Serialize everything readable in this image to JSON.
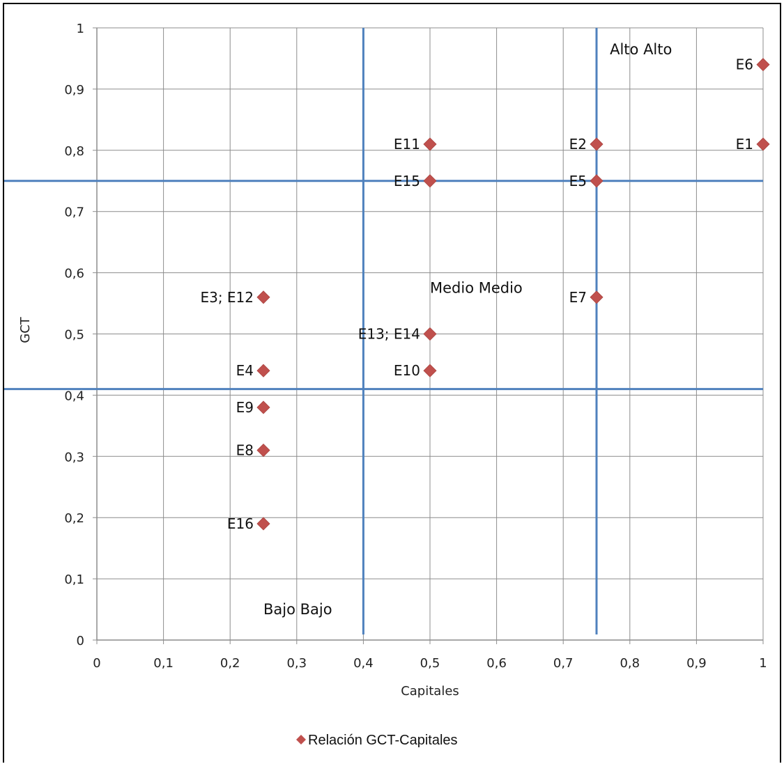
{
  "chart_data": {
    "type": "scatter",
    "title": "",
    "xlabel": "Capitales",
    "ylabel": "GCT",
    "xlim": [
      0,
      1
    ],
    "ylim": [
      0,
      1
    ],
    "x_tick_labels": [
      "0",
      "0,1",
      "0,2",
      "0,3",
      "0,4",
      "0,5",
      "0,6",
      "0,7",
      "0,8",
      "0,9",
      "1"
    ],
    "y_tick_labels": [
      "0",
      "0,1",
      "0,2",
      "0,3",
      "0,4",
      "0,5",
      "0,6",
      "0,7",
      "0,8",
      "0,9",
      "1"
    ],
    "grid": true,
    "legend_position": "bottom",
    "series": [
      {
        "name": "Relación  GCT-Capitales",
        "color": "#c0504d",
        "marker": "diamond",
        "points": [
          {
            "label": "E1",
            "x": 1.0,
            "y": 0.81
          },
          {
            "label": "E2",
            "x": 0.75,
            "y": 0.81
          },
          {
            "label": "E3; E12",
            "x": 0.25,
            "y": 0.56
          },
          {
            "label": "E4",
            "x": 0.25,
            "y": 0.44
          },
          {
            "label": "E5",
            "x": 0.75,
            "y": 0.75
          },
          {
            "label": "E6",
            "x": 1.0,
            "y": 0.94
          },
          {
            "label": "E7",
            "x": 0.75,
            "y": 0.56
          },
          {
            "label": "E8",
            "x": 0.25,
            "y": 0.31
          },
          {
            "label": "E9",
            "x": 0.25,
            "y": 0.38
          },
          {
            "label": "E10",
            "x": 0.5,
            "y": 0.44
          },
          {
            "label": "E11",
            "x": 0.5,
            "y": 0.81
          },
          {
            "label": "E13; E14",
            "x": 0.5,
            "y": 0.5
          },
          {
            "label": "E15",
            "x": 0.5,
            "y": 0.75
          },
          {
            "label": "E16",
            "x": 0.25,
            "y": 0.19
          }
        ]
      }
    ],
    "reference_lines": {
      "color": "#4f81bd",
      "vertical_x": [
        0.4,
        0.75
      ],
      "horizontal_y": [
        0.41,
        0.75
      ]
    },
    "annotations": [
      {
        "text": "Alto Alto",
        "x": 0.77,
        "y": 0.965
      },
      {
        "text": "Medio Medio",
        "x": 0.5,
        "y": 0.575
      },
      {
        "text": "Bajo Bajo",
        "x": 0.25,
        "y": 0.05
      }
    ]
  }
}
